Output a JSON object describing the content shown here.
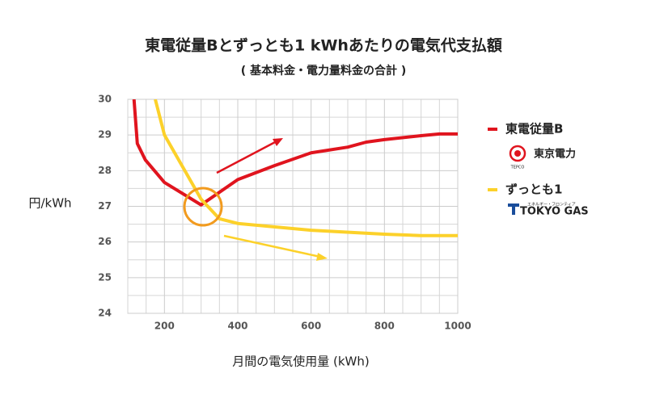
{
  "chart_data": {
    "type": "line",
    "title": "東電従量Bとずっとも1 kWhあたりの電気代支払額",
    "subtitle": "( 基本料金・電力量料金の合計 )",
    "y_label": "円/kWh",
    "x_label": "月間の電気使用量 (kWh)",
    "xlim": [
      100,
      1000
    ],
    "ylim": [
      24,
      30
    ],
    "xticks": [
      200,
      400,
      600,
      800,
      1000
    ],
    "yticks": [
      24,
      25,
      26,
      27,
      28,
      29,
      30
    ],
    "minor_xticks": [
      100,
      150,
      250,
      300,
      350,
      450,
      500,
      550,
      650,
      700,
      750,
      850,
      900,
      950
    ],
    "minor_yticks": [
      24.5,
      25.5,
      26.5,
      27.5,
      28.5,
      29.5
    ],
    "grid": true,
    "series": [
      {
        "name": "東電従量B",
        "color": "#e0141e",
        "logo_texts": [
          "東京電力",
          "TEPCO"
        ],
        "x": [
          117,
          126,
          148,
          200,
          300,
          400,
          500,
          600,
          700,
          750,
          800,
          900,
          950,
          1000
        ],
        "values": [
          30,
          28.76,
          28.3,
          27.67,
          27.04,
          27.75,
          28.14,
          28.5,
          28.66,
          28.8,
          28.87,
          28.98,
          29.03,
          29.03
        ]
      },
      {
        "name": "ずっとも1",
        "color": "#fcd12a",
        "logo_texts": [
          "エネルギー・フロンティア",
          "TOKYO GAS"
        ],
        "x": [
          175,
          200,
          300,
          350,
          400,
          600,
          800,
          900,
          1000
        ],
        "values": [
          30,
          29.0,
          27.2,
          26.65,
          26.52,
          26.33,
          26.22,
          26.18,
          26.18
        ]
      }
    ]
  }
}
